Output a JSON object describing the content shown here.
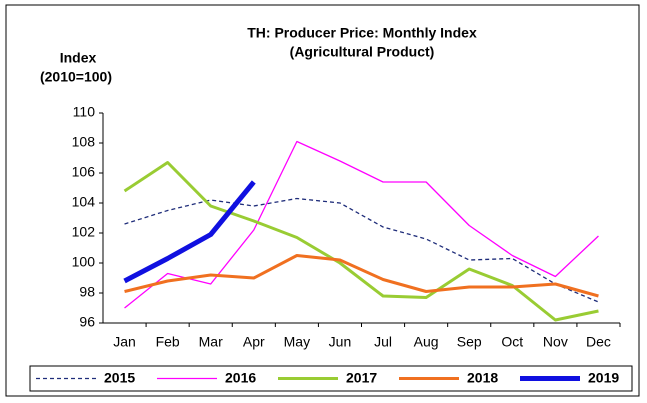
{
  "chart_data": {
    "type": "line",
    "title": [
      "TH: Producer Price: Monthly Index",
      "(Agricultural Product)"
    ],
    "y_label": [
      "Index",
      "(2010=100)"
    ],
    "categories": [
      "Jan",
      "Feb",
      "Mar",
      "Apr",
      "May",
      "Jun",
      "Jul",
      "Aug",
      "Sep",
      "Oct",
      "Nov",
      "Dec"
    ],
    "ylim": [
      96,
      110
    ],
    "yticks": [
      96,
      98,
      100,
      102,
      104,
      106,
      108,
      110
    ],
    "legend": "bottom",
    "series": [
      {
        "name": "2015",
        "color": "#1f2d7a",
        "dashed": true,
        "line_width": 1.3,
        "values": [
          102.6,
          103.5,
          104.2,
          103.8,
          104.3,
          104.0,
          102.4,
          101.6,
          100.2,
          100.3,
          98.6,
          97.4
        ]
      },
      {
        "name": "2016",
        "color": "#ff00ff",
        "dashed": false,
        "line_width": 1.3,
        "values": [
          97.0,
          99.3,
          98.6,
          102.2,
          108.1,
          106.8,
          105.4,
          105.4,
          102.5,
          100.5,
          99.1,
          101.8
        ]
      },
      {
        "name": "2017",
        "color": "#99cc33",
        "dashed": false,
        "line_width": 3,
        "values": [
          104.8,
          106.7,
          103.8,
          102.8,
          101.7,
          100.0,
          97.8,
          97.7,
          99.6,
          98.5,
          96.2,
          96.8
        ]
      },
      {
        "name": "2018",
        "color": "#f07020",
        "dashed": false,
        "line_width": 3,
        "values": [
          98.1,
          98.8,
          99.2,
          99.0,
          100.5,
          100.2,
          98.9,
          98.1,
          98.4,
          98.4,
          98.6,
          97.8
        ]
      },
      {
        "name": "2019",
        "color": "#1010e0",
        "dashed": false,
        "line_width": 5,
        "values": [
          98.8,
          100.3,
          101.9,
          105.4,
          null,
          null,
          null,
          null,
          null,
          null,
          null,
          null
        ]
      }
    ]
  }
}
